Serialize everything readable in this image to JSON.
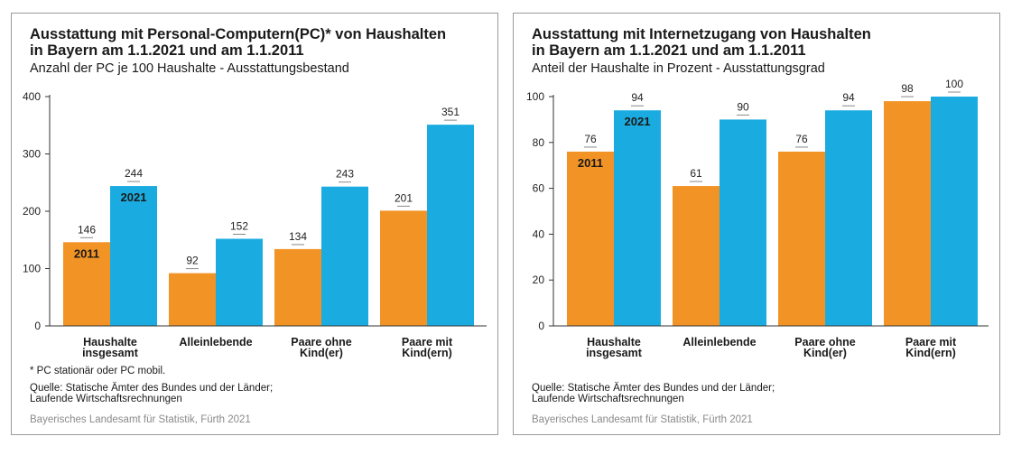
{
  "colors": {
    "y2011": "#f29325",
    "y2021": "#1aace0",
    "axis": "#333333",
    "grid": "#9a9a9a"
  },
  "left": {
    "title_line1": "Ausstattung mit Personal-Computern(PC)* von Haushalten",
    "title_line2": "in Bayern am 1.1.2021 und am 1.1.2011",
    "subtitle": "Anzahl der PC je 100 Haushalte - Ausstattungsbestand",
    "footnote": "*  PC stationär oder PC mobil.",
    "source_line1": "Quelle: Statische Ämter des Bundes und der Länder;",
    "source_line2": "Laufende Wirtschaftsrechnungen",
    "credit": "Bayerisches Landesamt für Statistik, Fürth 2021"
  },
  "right": {
    "title_line1": "Ausstattung mit Internetzugang von Haushalten",
    "title_line2": "in Bayern am 1.1.2021 und am 1.1.2011",
    "subtitle": "Anteil der Haushalte in Prozent - Ausstattungsgrad",
    "source_line1": "Quelle: Statische Ämter des Bundes und der Länder;",
    "source_line2": "Laufende Wirtschaftsrechnungen",
    "credit": "Bayerisches Landesamt für Statistik, Fürth 2021"
  },
  "chart_data": [
    {
      "type": "bar",
      "title": "Ausstattung mit Personal-Computern(PC)* von Haushalten in Bayern am 1.1.2021 und am 1.1.2011",
      "subtitle": "Anzahl der PC je 100 Haushalte - Ausstattungsbestand",
      "categories": [
        [
          "Haushalte",
          "insgesamt"
        ],
        [
          "Alleinlebende"
        ],
        [
          "Paare ohne",
          "Kind(er)"
        ],
        [
          "Paare mit",
          "Kind(ern)"
        ]
      ],
      "series": [
        {
          "name": "2011",
          "values": [
            146,
            92,
            134,
            201
          ]
        },
        {
          "name": "2021",
          "values": [
            244,
            152,
            243,
            351
          ]
        }
      ],
      "ylim": [
        0,
        400
      ],
      "yticks": [
        0,
        100,
        200,
        300,
        400
      ],
      "grid": false,
      "legend": "inside first bar group"
    },
    {
      "type": "bar",
      "title": "Ausstattung mit Internetzugang von Haushalten in Bayern am 1.1.2021 und am 1.1.2011",
      "subtitle": "Anteil der Haushalte in Prozent - Ausstattungsgrad",
      "categories": [
        [
          "Haushalte",
          "insgesamt"
        ],
        [
          "Alleinlebende"
        ],
        [
          "Paare ohne",
          "Kind(er)"
        ],
        [
          "Paare mit",
          "Kind(ern)"
        ]
      ],
      "series": [
        {
          "name": "2011",
          "values": [
            76,
            61,
            76,
            98
          ]
        },
        {
          "name": "2021",
          "values": [
            94,
            90,
            94,
            100
          ]
        }
      ],
      "ylim": [
        0,
        100
      ],
      "yticks": [
        0,
        20,
        40,
        60,
        80,
        100
      ],
      "grid": false,
      "legend": "inside first bar group"
    }
  ]
}
